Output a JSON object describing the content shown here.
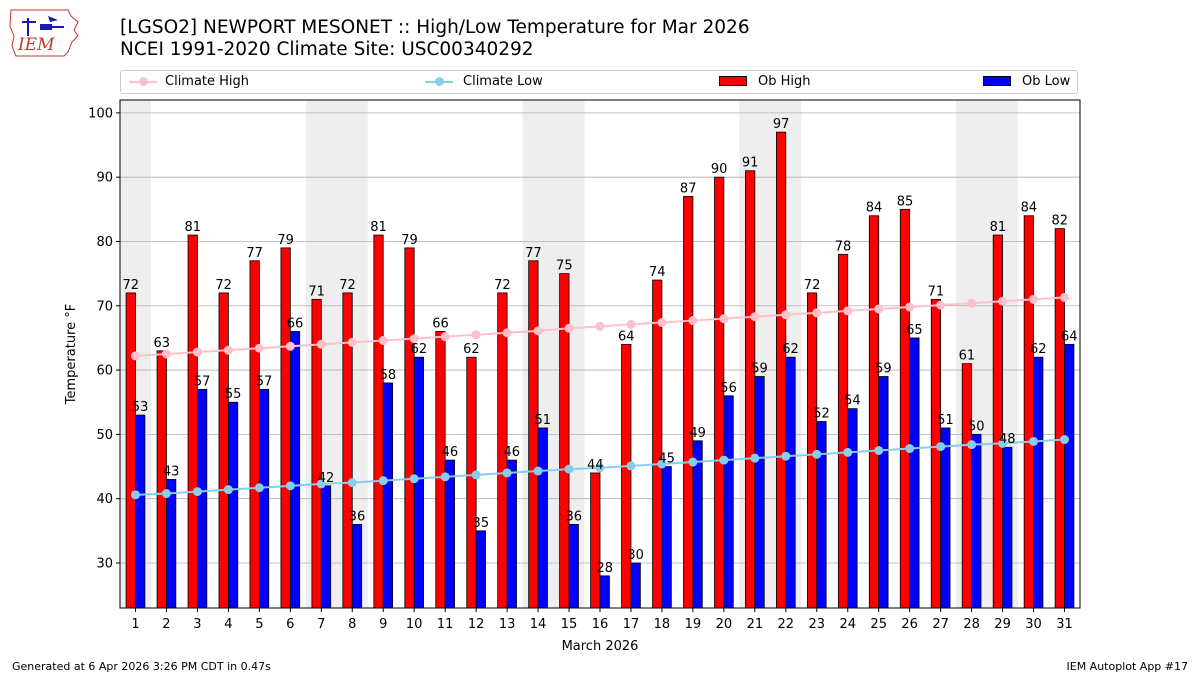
{
  "header": {
    "title_line1": "[LGSO2] NEWPORT MESONET :: High/Low Temperature for Mar 2026",
    "title_line2": "NCEI 1991-2020 Climate Site: USC00340292"
  },
  "logo": {
    "text": "IEM"
  },
  "footer": {
    "left": "Generated at 6 Apr 2026 3:26 PM CDT in 0.47s",
    "right": "IEM Autoplot App #17"
  },
  "colors": {
    "ob_high": "#ff0000",
    "ob_low": "#0000ff",
    "climate_high": "#ffc0cb",
    "climate_low": "#87ceeb",
    "weekend_shade": "#eeeeee",
    "grid": "#b0b0b0"
  },
  "chart_data": {
    "type": "bar",
    "xlabel": "March 2026",
    "ylabel": "Temperature °F",
    "ylim": [
      23,
      102
    ],
    "yticks": [
      30,
      40,
      50,
      60,
      70,
      80,
      90,
      100
    ],
    "grid": "horizontal",
    "legend_position": "top",
    "legend": [
      "Climate High",
      "Climate Low",
      "Ob High",
      "Ob Low"
    ],
    "shaded_weekend_days": [
      1,
      7,
      8,
      14,
      15,
      21,
      22,
      28,
      29
    ],
    "categories": [
      "1",
      "2",
      "3",
      "4",
      "5",
      "6",
      "7",
      "8",
      "9",
      "10",
      "11",
      "12",
      "13",
      "14",
      "15",
      "16",
      "17",
      "18",
      "19",
      "20",
      "21",
      "22",
      "23",
      "24",
      "25",
      "26",
      "27",
      "28",
      "29",
      "30",
      "31"
    ],
    "series": [
      {
        "name": "Ob High",
        "kind": "bar",
        "values": [
          72,
          63,
          81,
          72,
          77,
          79,
          71,
          72,
          81,
          79,
          66,
          62,
          72,
          77,
          75,
          44,
          64,
          74,
          87,
          90,
          91,
          97,
          72,
          78,
          84,
          85,
          71,
          61,
          81,
          84,
          82
        ]
      },
      {
        "name": "Ob Low",
        "kind": "bar",
        "values": [
          53,
          43,
          57,
          55,
          57,
          66,
          42,
          36,
          58,
          62,
          46,
          35,
          46,
          51,
          36,
          28,
          30,
          45,
          49,
          56,
          59,
          62,
          52,
          54,
          59,
          65,
          51,
          50,
          48,
          62,
          64
        ]
      },
      {
        "name": "Climate High",
        "kind": "line",
        "values": [
          62.2,
          62.5,
          62.8,
          63.1,
          63.4,
          63.7,
          64.0,
          64.3,
          64.6,
          64.9,
          65.2,
          65.5,
          65.8,
          66.1,
          66.5,
          66.8,
          67.1,
          67.4,
          67.7,
          68.0,
          68.3,
          68.6,
          68.9,
          69.2,
          69.5,
          69.8,
          70.1,
          70.4,
          70.7,
          71.0,
          71.3
        ]
      },
      {
        "name": "Climate Low",
        "kind": "line",
        "values": [
          40.6,
          40.8,
          41.1,
          41.4,
          41.7,
          42.0,
          42.3,
          42.5,
          42.8,
          43.1,
          43.4,
          43.7,
          44.0,
          44.3,
          44.6,
          44.8,
          45.1,
          45.4,
          45.7,
          46.0,
          46.3,
          46.6,
          46.9,
          47.2,
          47.5,
          47.8,
          48.1,
          48.4,
          48.6,
          48.9,
          49.2
        ]
      }
    ]
  }
}
